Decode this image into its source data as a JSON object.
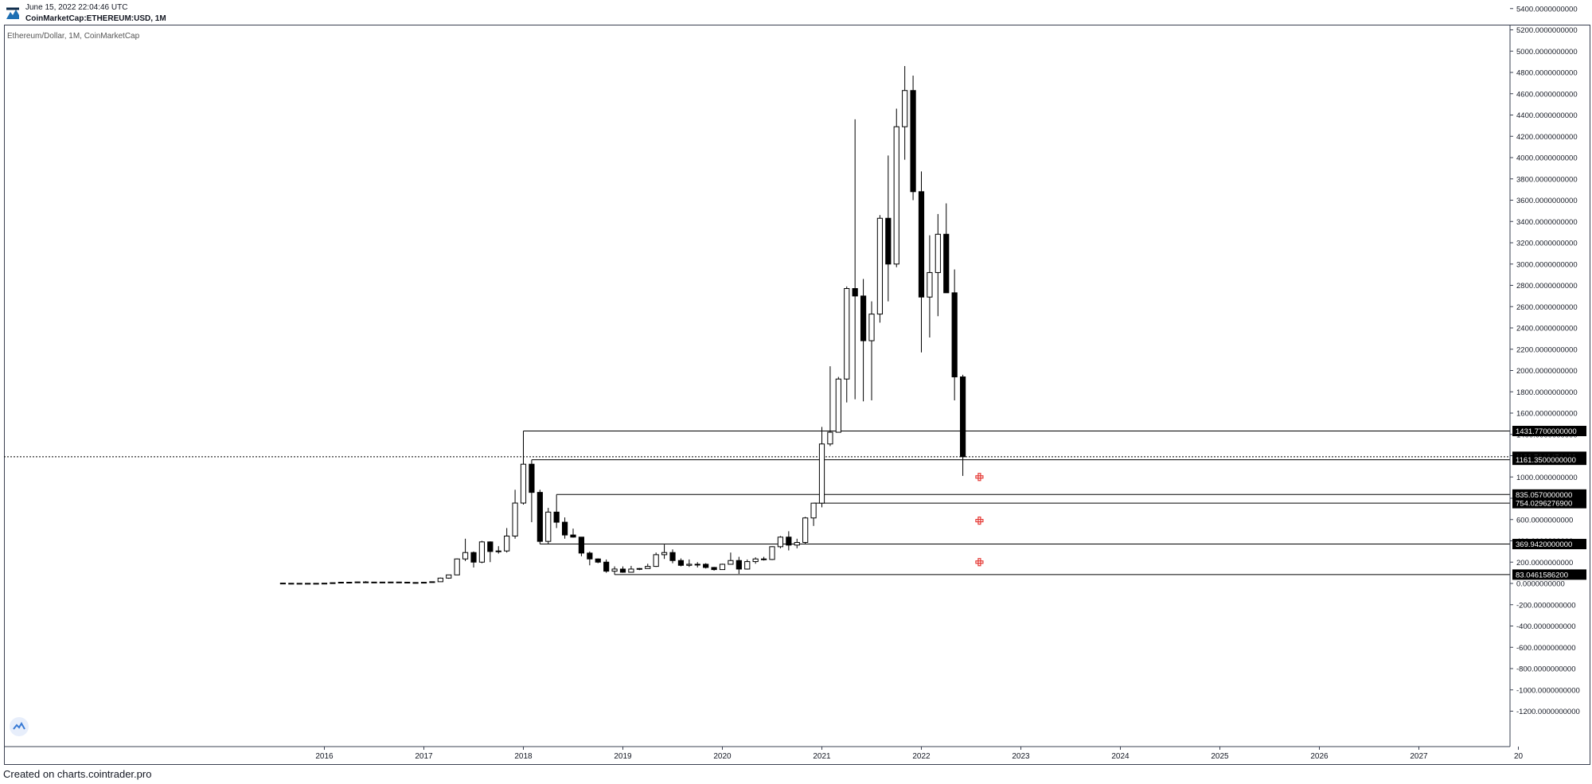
{
  "header": {
    "timestamp": "June 15, 2022 22:04:46 UTC",
    "symbol": "CoinMarketCap:ETHEREUM:USD, 1M"
  },
  "footer": {
    "text": "Created on charts.cointrader.pro"
  },
  "colors": {
    "up_body": "#ffffff",
    "down_body": "#000000",
    "candle_outline": "#000000",
    "level_line": "#000000",
    "label_bg": "#000000",
    "label_text": "#ffffff",
    "marker": "#e53935",
    "axis_text": "#131722"
  },
  "chart_data": {
    "type": "candlestick",
    "title": "Ethereum/Dollar, 1M, CoinMarketCap",
    "x_axis": {
      "ticks": [
        "2016",
        "2017",
        "2018",
        "2019",
        "2020",
        "2021",
        "2022",
        "2023",
        "2024",
        "2025",
        "2026",
        "2027",
        "20"
      ]
    },
    "y_axis": {
      "range": [
        -1300,
        5500
      ],
      "ticks": [
        "5400.0000000000",
        "5200.0000000000",
        "5000.0000000000",
        "4800.0000000000",
        "4600.0000000000",
        "4400.0000000000",
        "4200.0000000000",
        "4000.0000000000",
        "3800.0000000000",
        "3600.0000000000",
        "3400.0000000000",
        "3200.0000000000",
        "3000.0000000000",
        "2800.0000000000",
        "2600.0000000000",
        "2400.0000000000",
        "2200.0000000000",
        "2000.0000000000",
        "1800.0000000000",
        "1600.0000000000",
        "1400.0000000000",
        "1200.0000000000",
        "1000.0000000000",
        "800.0000000000",
        "600.0000000000",
        "400.0000000000",
        "200.0000000000",
        "0.0000000000",
        "-200.0000000000",
        "-400.0000000000",
        "-600.0000000000",
        "-800.0000000000",
        "-1000.0000000000",
        "-1200.0000000000"
      ]
    },
    "candles": [
      {
        "date": "2015-08",
        "o": 2.8,
        "h": 3.5,
        "l": 0.5,
        "c": 1.3
      },
      {
        "date": "2015-09",
        "o": 1.3,
        "h": 1.5,
        "l": 0.6,
        "c": 0.7
      },
      {
        "date": "2015-10",
        "o": 0.7,
        "h": 1.3,
        "l": 0.4,
        "c": 0.9
      },
      {
        "date": "2015-11",
        "o": 0.9,
        "h": 1.2,
        "l": 0.8,
        "c": 0.87
      },
      {
        "date": "2015-12",
        "o": 0.87,
        "h": 1.1,
        "l": 0.8,
        "c": 0.93
      },
      {
        "date": "2016-01",
        "o": 0.93,
        "h": 2.2,
        "l": 0.9,
        "c": 2.2
      },
      {
        "date": "2016-02",
        "o": 2.2,
        "h": 6.6,
        "l": 2.2,
        "c": 6.4
      },
      {
        "date": "2016-03",
        "o": 6.4,
        "h": 15,
        "l": 6.4,
        "c": 11.2
      },
      {
        "date": "2016-04",
        "o": 11.2,
        "h": 11.5,
        "l": 7,
        "c": 8.8
      },
      {
        "date": "2016-05",
        "o": 8.8,
        "h": 14.5,
        "l": 8,
        "c": 14
      },
      {
        "date": "2016-06",
        "o": 14,
        "h": 21,
        "l": 11,
        "c": 12.5
      },
      {
        "date": "2016-07",
        "o": 12.5,
        "h": 15,
        "l": 10.5,
        "c": 12.5
      },
      {
        "date": "2016-08",
        "o": 12.5,
        "h": 13,
        "l": 9.8,
        "c": 12
      },
      {
        "date": "2016-09",
        "o": 12,
        "h": 14,
        "l": 11,
        "c": 13
      },
      {
        "date": "2016-10",
        "o": 13,
        "h": 13.5,
        "l": 10.5,
        "c": 11.5
      },
      {
        "date": "2016-11",
        "o": 11.5,
        "h": 11.5,
        "l": 8.5,
        "c": 8.6
      },
      {
        "date": "2016-12",
        "o": 8.6,
        "h": 9,
        "l": 5.9,
        "c": 8
      },
      {
        "date": "2017-01",
        "o": 8,
        "h": 11.5,
        "l": 7.9,
        "c": 10.7
      },
      {
        "date": "2017-02",
        "o": 10.7,
        "h": 16,
        "l": 10.5,
        "c": 16
      },
      {
        "date": "2017-03",
        "o": 16,
        "h": 55,
        "l": 15.5,
        "c": 50
      },
      {
        "date": "2017-04",
        "o": 50,
        "h": 80,
        "l": 44,
        "c": 80
      },
      {
        "date": "2017-05",
        "o": 80,
        "h": 235,
        "l": 80,
        "c": 230
      },
      {
        "date": "2017-06",
        "o": 230,
        "h": 420,
        "l": 210,
        "c": 290
      },
      {
        "date": "2017-07",
        "o": 290,
        "h": 300,
        "l": 150,
        "c": 200
      },
      {
        "date": "2017-08",
        "o": 200,
        "h": 400,
        "l": 190,
        "c": 390
      },
      {
        "date": "2017-09",
        "o": 390,
        "h": 395,
        "l": 200,
        "c": 300
      },
      {
        "date": "2017-10",
        "o": 300,
        "h": 350,
        "l": 280,
        "c": 305
      },
      {
        "date": "2017-11",
        "o": 305,
        "h": 520,
        "l": 290,
        "c": 445
      },
      {
        "date": "2017-12",
        "o": 445,
        "h": 880,
        "l": 420,
        "c": 755
      },
      {
        "date": "2018-01",
        "o": 755,
        "h": 1431.77,
        "l": 740,
        "c": 1120
      },
      {
        "date": "2018-02",
        "o": 1120,
        "h": 1161.35,
        "l": 575,
        "c": 855
      },
      {
        "date": "2018-03",
        "o": 855,
        "h": 880,
        "l": 370,
        "c": 395
      },
      {
        "date": "2018-04",
        "o": 395,
        "h": 710,
        "l": 370,
        "c": 670
      },
      {
        "date": "2018-05",
        "o": 670,
        "h": 835.06,
        "l": 520,
        "c": 575
      },
      {
        "date": "2018-06",
        "o": 575,
        "h": 620,
        "l": 420,
        "c": 455
      },
      {
        "date": "2018-07",
        "o": 455,
        "h": 515,
        "l": 430,
        "c": 435
      },
      {
        "date": "2018-08",
        "o": 435,
        "h": 435,
        "l": 255,
        "c": 285
      },
      {
        "date": "2018-09",
        "o": 285,
        "h": 300,
        "l": 170,
        "c": 230
      },
      {
        "date": "2018-10",
        "o": 230,
        "h": 235,
        "l": 190,
        "c": 200
      },
      {
        "date": "2018-11",
        "o": 200,
        "h": 225,
        "l": 100,
        "c": 115
      },
      {
        "date": "2018-12",
        "o": 115,
        "h": 160,
        "l": 83.05,
        "c": 135
      },
      {
        "date": "2019-01",
        "o": 135,
        "h": 160,
        "l": 100,
        "c": 105
      },
      {
        "date": "2019-02",
        "o": 105,
        "h": 165,
        "l": 102,
        "c": 135
      },
      {
        "date": "2019-03",
        "o": 135,
        "h": 145,
        "l": 125,
        "c": 140
      },
      {
        "date": "2019-04",
        "o": 140,
        "h": 185,
        "l": 140,
        "c": 160
      },
      {
        "date": "2019-05",
        "o": 160,
        "h": 290,
        "l": 155,
        "c": 270
      },
      {
        "date": "2019-06",
        "o": 270,
        "h": 365,
        "l": 230,
        "c": 290
      },
      {
        "date": "2019-07",
        "o": 290,
        "h": 320,
        "l": 190,
        "c": 215
      },
      {
        "date": "2019-08",
        "o": 215,
        "h": 235,
        "l": 160,
        "c": 170
      },
      {
        "date": "2019-09",
        "o": 170,
        "h": 225,
        "l": 155,
        "c": 180
      },
      {
        "date": "2019-10",
        "o": 180,
        "h": 200,
        "l": 150,
        "c": 180
      },
      {
        "date": "2019-11",
        "o": 180,
        "h": 190,
        "l": 140,
        "c": 150
      },
      {
        "date": "2019-12",
        "o": 150,
        "h": 155,
        "l": 120,
        "c": 130
      },
      {
        "date": "2020-01",
        "o": 130,
        "h": 185,
        "l": 128,
        "c": 180
      },
      {
        "date": "2020-02",
        "o": 180,
        "h": 290,
        "l": 180,
        "c": 215
      },
      {
        "date": "2020-03",
        "o": 215,
        "h": 250,
        "l": 90,
        "c": 135
      },
      {
        "date": "2020-04",
        "o": 135,
        "h": 225,
        "l": 130,
        "c": 205
      },
      {
        "date": "2020-05",
        "o": 205,
        "h": 245,
        "l": 185,
        "c": 230
      },
      {
        "date": "2020-06",
        "o": 230,
        "h": 250,
        "l": 215,
        "c": 225
      },
      {
        "date": "2020-07",
        "o": 225,
        "h": 350,
        "l": 220,
        "c": 345
      },
      {
        "date": "2020-08",
        "o": 345,
        "h": 445,
        "l": 330,
        "c": 435
      },
      {
        "date": "2020-09",
        "o": 435,
        "h": 490,
        "l": 310,
        "c": 360
      },
      {
        "date": "2020-10",
        "o": 360,
        "h": 420,
        "l": 330,
        "c": 385
      },
      {
        "date": "2020-11",
        "o": 385,
        "h": 625,
        "l": 370,
        "c": 615
      },
      {
        "date": "2020-12",
        "o": 615,
        "h": 755,
        "l": 540,
        "c": 754.03
      },
      {
        "date": "2021-01",
        "o": 754.03,
        "h": 1470,
        "l": 715,
        "c": 1310
      },
      {
        "date": "2021-02",
        "o": 1310,
        "h": 2040,
        "l": 1290,
        "c": 1420
      },
      {
        "date": "2021-03",
        "o": 1420,
        "h": 1940,
        "l": 1420,
        "c": 1920
      },
      {
        "date": "2021-04",
        "o": 1920,
        "h": 2790,
        "l": 1700,
        "c": 2770
      },
      {
        "date": "2021-05",
        "o": 2770,
        "h": 4360,
        "l": 1730,
        "c": 2700
      },
      {
        "date": "2021-06",
        "o": 2700,
        "h": 2860,
        "l": 1710,
        "c": 2280
      },
      {
        "date": "2021-07",
        "o": 2280,
        "h": 2650,
        "l": 1720,
        "c": 2530
      },
      {
        "date": "2021-08",
        "o": 2530,
        "h": 3460,
        "l": 2450,
        "c": 3430
      },
      {
        "date": "2021-09",
        "o": 3430,
        "h": 4020,
        "l": 2650,
        "c": 3000
      },
      {
        "date": "2021-10",
        "o": 3000,
        "h": 4460,
        "l": 2970,
        "c": 4290
      },
      {
        "date": "2021-11",
        "o": 4290,
        "h": 4860,
        "l": 3980,
        "c": 4630
      },
      {
        "date": "2021-12",
        "o": 4630,
        "h": 4770,
        "l": 3600,
        "c": 3680
      },
      {
        "date": "2022-01",
        "o": 3680,
        "h": 3870,
        "l": 2170,
        "c": 2690
      },
      {
        "date": "2022-02",
        "o": 2690,
        "h": 3270,
        "l": 2310,
        "c": 2920
      },
      {
        "date": "2022-03",
        "o": 2920,
        "h": 3470,
        "l": 2510,
        "c": 3280
      },
      {
        "date": "2022-04",
        "o": 3280,
        "h": 3570,
        "l": 2780,
        "c": 2730
      },
      {
        "date": "2022-05",
        "o": 2730,
        "h": 2950,
        "l": 1720,
        "c": 1940
      },
      {
        "date": "2022-06",
        "o": 1940,
        "h": 1960,
        "l": 1010,
        "c": 1189.71
      }
    ],
    "levels": [
      {
        "value": 1431.77,
        "label": "1431.7700000000",
        "start": "2018-01",
        "anchor": "h"
      },
      {
        "value": 1189.71,
        "label": "1189.7146474400",
        "start": "2015-05",
        "anchor": "current",
        "dashed": true
      },
      {
        "value": 1161.35,
        "label": "1161.3500000000",
        "start": "2018-02",
        "anchor": "h"
      },
      {
        "value": 835.06,
        "label": "835.0570000000",
        "start": "2018-05",
        "anchor": "h"
      },
      {
        "value": 754.03,
        "label": "754.0296276900",
        "start": "2020-12",
        "anchor": "c"
      },
      {
        "value": 369.94,
        "label": "369.9420000000",
        "start": "2018-03",
        "anchor": "l"
      },
      {
        "value": 83.05,
        "label": "83.0461586200",
        "start": "2018-12",
        "anchor": "l"
      }
    ],
    "markers": [
      {
        "date": "2022-08",
        "value": 1000
      },
      {
        "date": "2022-08",
        "value": 590
      },
      {
        "date": "2022-08",
        "value": 200
      }
    ],
    "grid": false,
    "legend": "none"
  }
}
